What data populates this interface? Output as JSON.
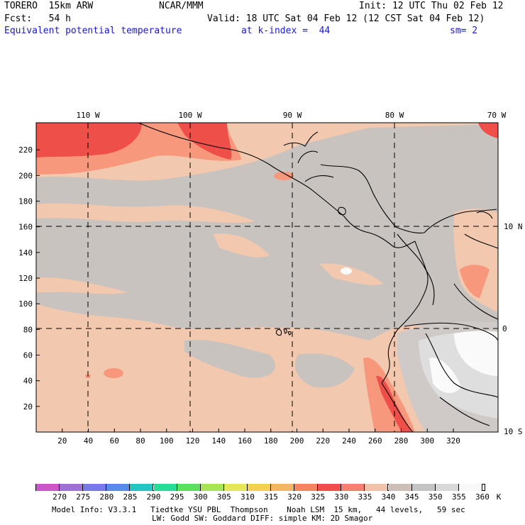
{
  "header": {
    "model": "TORERO  15km ARW",
    "org": "NCAR/MMM",
    "init": "Init: 12 UTC Thu 02 Feb 12",
    "fcst": "Fcst:   54 h",
    "valid": "Valid: 18 UTC Sat 04 Feb 12 (12 CST Sat 04 Feb 12)",
    "field": "Equivalent potential temperature",
    "level": "at k-index =  44",
    "smooth": "sm= 2"
  },
  "map": {
    "lon_labels": [
      "110 W",
      "100 W",
      "90 W",
      "80 W",
      "70 W"
    ],
    "lat_labels": [
      "10 N",
      "0",
      "10 S"
    ],
    "y_ticks": [
      "20",
      "40",
      "60",
      "80",
      "100",
      "120",
      "140",
      "160",
      "180",
      "200",
      "220"
    ],
    "x_ticks": [
      "20",
      "40",
      "60",
      "80",
      "100",
      "120",
      "140",
      "160",
      "180",
      "200",
      "220",
      "240",
      "260",
      "280",
      "300",
      "320"
    ],
    "colors": {
      "bg_warm": "#f2c8ae",
      "bg_gray": "#c9c3bf",
      "light_gray": "#dedede",
      "white": "#fafafa",
      "red": "#ee4f49",
      "salmon": "#f7977b",
      "coast": "#000000"
    }
  },
  "legend": {
    "labels": [
      "270",
      "275",
      "280",
      "285",
      "290",
      "295",
      "300",
      "305",
      "310",
      "315",
      "320",
      "325",
      "330",
      "335",
      "340",
      "345",
      "350",
      "355",
      "360"
    ],
    "unit": "K",
    "colors": [
      "#cc55cc",
      "#a070d8",
      "#7878e8",
      "#5a8ae8",
      "#26c4c4",
      "#28dc98",
      "#5ae05a",
      "#a8e458",
      "#e6e65a",
      "#f5d050",
      "#f8b464",
      "#f4875a",
      "#f04e4a",
      "#f48070",
      "#f2c2a8",
      "#cdbfb8",
      "#c4c4c4",
      "#d8d8d8",
      "#f8f8f8"
    ]
  },
  "footer": {
    "line1": "Model Info: V3.3.1   Tiedtke YSU PBL  Thompson    Noah LSM  15 km,   44 levels,   59 sec",
    "line2": "LW: Godd SW: Goddard DIFF: simple KM: 2D Smagor"
  }
}
